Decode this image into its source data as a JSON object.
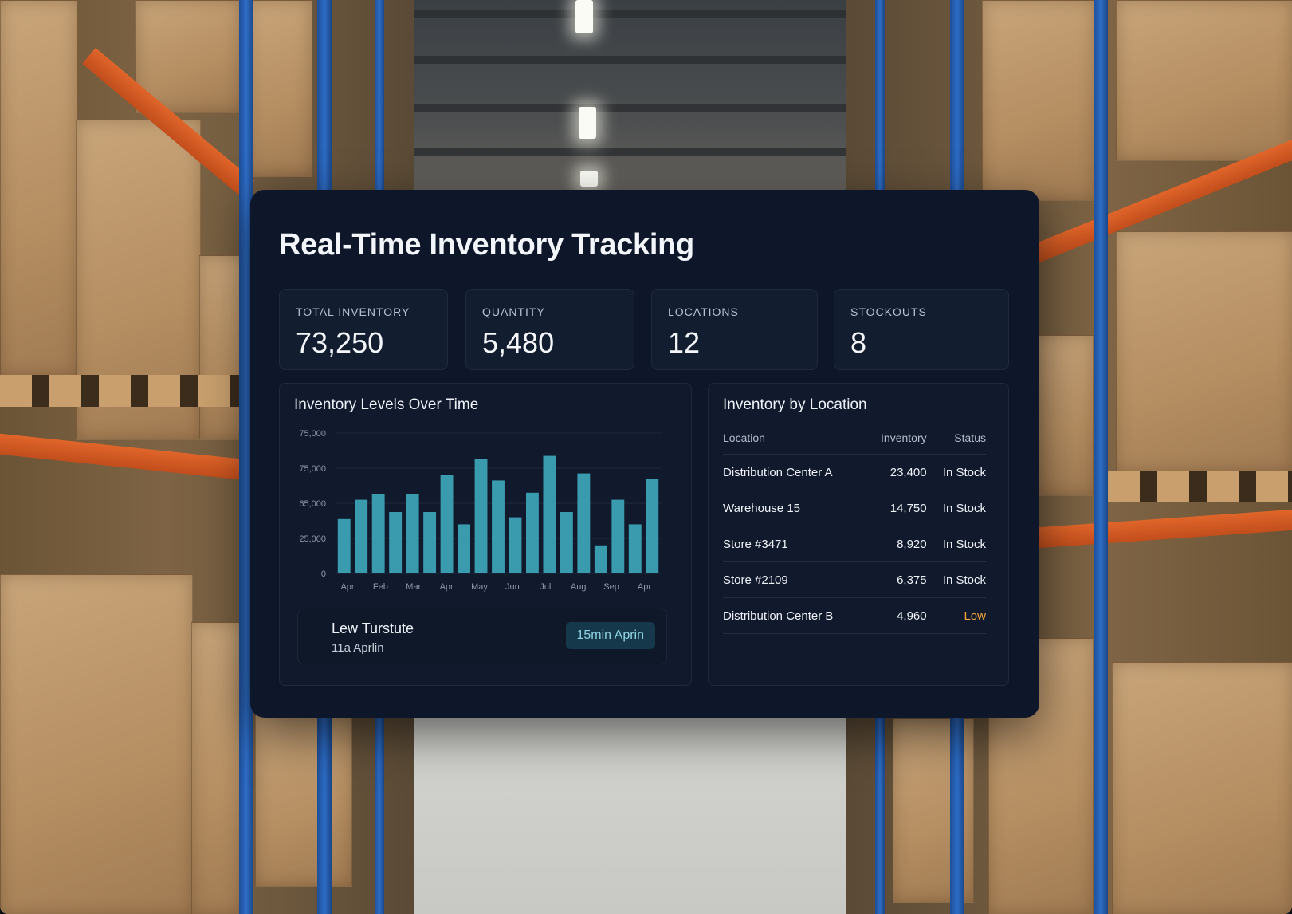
{
  "dashboard": {
    "title": "Real-Time Inventory Tracking",
    "stats": [
      {
        "label": "TOTAL INVENTORY",
        "value": "73,250"
      },
      {
        "label": "QUANTITY",
        "value": "5,480"
      },
      {
        "label": "LOCATIONS",
        "value": "12"
      },
      {
        "label": "STOCKOUTS",
        "value": "8"
      }
    ]
  },
  "levels_panel": {
    "title": "Inventory Levels Over Time",
    "person": {
      "name": "Lew Turstute",
      "subtitle": "11a Aprlin",
      "badge": "15min Aprin"
    }
  },
  "location_panel": {
    "title": "Inventory by Location",
    "columns": [
      "Location",
      "Inventory",
      "Status"
    ],
    "rows": [
      {
        "location": "Distribution Center A",
        "inventory": "23,400",
        "status": "In Stock"
      },
      {
        "location": "Warehouse 15",
        "inventory": "14,750",
        "status": "In Stock"
      },
      {
        "location": "Store #3471",
        "inventory": "8,920",
        "status": "In Stock"
      },
      {
        "location": "Store #2109",
        "inventory": "6,375",
        "status": "In Stock"
      },
      {
        "location": "Distribution Center B",
        "inventory": "4,960",
        "status": "Low"
      }
    ]
  },
  "colors": {
    "bar": "#3a9aae",
    "low": "#f0a23a",
    "card": "#0e1729"
  },
  "chart_data": {
    "type": "bar",
    "title": "Inventory Levels Over Time",
    "y_tick_labels": [
      "0",
      "25,000",
      "65,000",
      "75,000",
      "75,000"
    ],
    "x_tick_labels": [
      "Apr",
      "Feb",
      "Mar",
      "Apr",
      "May",
      "Jun",
      "Jul",
      "Aug",
      "Sep",
      "Apr"
    ],
    "ylim": [
      0,
      4
    ],
    "grid": true,
    "values_in_tick_steps": [
      1.55,
      2.1,
      2.25,
      1.75,
      2.25,
      1.75,
      2.8,
      1.4,
      3.25,
      2.65,
      1.6,
      2.3,
      3.35,
      1.75,
      2.85,
      0.8,
      2.1,
      1.4,
      2.7
    ]
  }
}
